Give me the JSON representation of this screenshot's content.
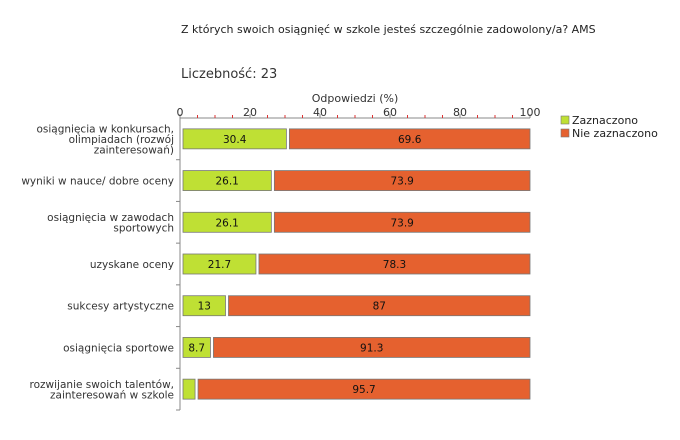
{
  "title": "Z których swoich osiągnięć w szkole jesteś szczególnie zadowolony/a? AMS",
  "count_label": "Liczebność: 23",
  "chart_data": {
    "type": "bar",
    "orientation": "horizontal",
    "stacked": true,
    "xlabel": "Odpowiedzi (%)",
    "xlim": [
      0,
      100
    ],
    "xticks": [
      0,
      20,
      40,
      60,
      80,
      100
    ],
    "legend_position": "right",
    "categories": [
      [
        "osiągnięcia w konkursach,",
        "olimpiadach (rozwój",
        "zainteresowań)"
      ],
      [
        "wyniki w nauce/ dobre oceny"
      ],
      [
        "osiągnięcia w zawodach",
        "sportowych"
      ],
      [
        "uzyskane oceny"
      ],
      [
        "sukcesy artystyczne"
      ],
      [
        "osiągnięcia sportowe"
      ],
      [
        "rozwijanie swoich talentów,",
        "zainteresowań w szkole"
      ]
    ],
    "series": [
      {
        "name": "Zaznaczono",
        "color": "#bfe034",
        "values": [
          30.4,
          26.1,
          26.1,
          21.7,
          13,
          8.7,
          4.3
        ],
        "labels": [
          "30.4",
          "26.1",
          "26.1",
          "21.7",
          "13",
          "8.7",
          ""
        ]
      },
      {
        "name": "Nie zaznaczono",
        "color": "#e5612f",
        "values": [
          69.6,
          73.9,
          73.9,
          78.3,
          87,
          91.3,
          95.7
        ],
        "labels": [
          "69.6",
          "73.9",
          "73.9",
          "78.3",
          "87",
          "91.3",
          "95.7"
        ]
      }
    ]
  }
}
